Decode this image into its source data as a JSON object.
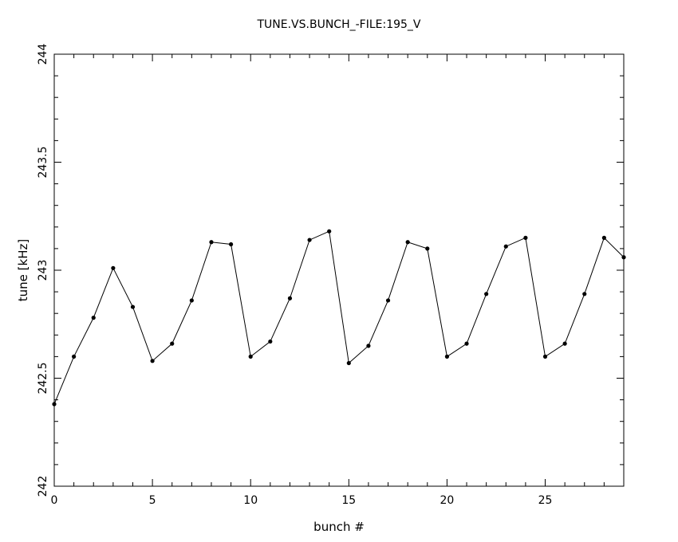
{
  "chart_data": {
    "type": "line",
    "title": "TUNE.VS.BUNCH_-FILE:195_V",
    "xlabel": "bunch #",
    "ylabel": "tune [kHz]",
    "xlim": [
      0,
      29
    ],
    "ylim": [
      242,
      244
    ],
    "xticks": [
      "0",
      "5",
      "10",
      "15",
      "20",
      "25"
    ],
    "yticks": [
      "242",
      "242.5",
      "243",
      "243.5",
      "244"
    ],
    "grid": false,
    "series": [
      {
        "x": [
          0,
          1,
          2,
          3,
          4,
          5,
          6,
          7,
          8,
          9,
          10,
          11,
          12,
          13,
          14,
          15,
          16,
          17,
          18,
          19,
          20,
          21,
          22,
          23,
          24,
          25,
          26,
          27,
          28,
          29
        ],
        "values": [
          242.38,
          242.6,
          242.78,
          243.01,
          242.83,
          242.58,
          242.66,
          242.86,
          243.13,
          243.12,
          242.6,
          242.67,
          242.87,
          243.14,
          243.18,
          242.57,
          242.65,
          242.86,
          243.13,
          243.1,
          242.6,
          242.66,
          242.89,
          243.11,
          243.15,
          242.6,
          242.66,
          242.89,
          243.15,
          243.06
        ]
      }
    ]
  }
}
